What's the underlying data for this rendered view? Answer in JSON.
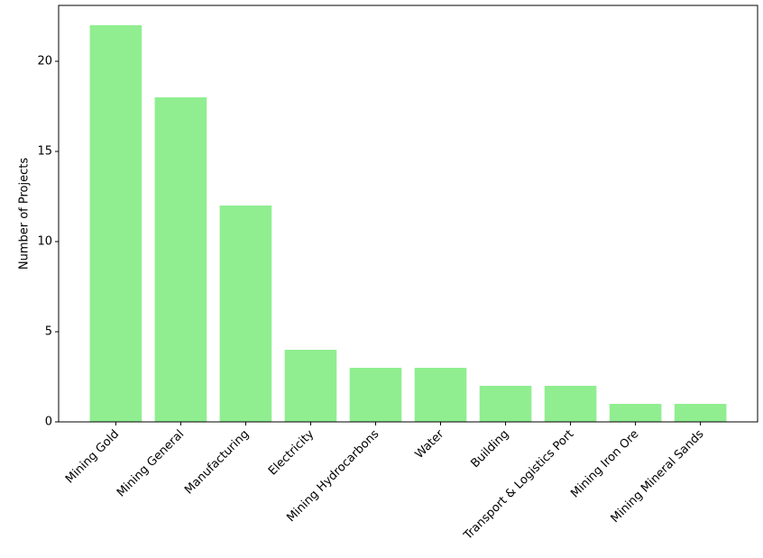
{
  "chart_data": {
    "type": "bar",
    "y_label": "Number of Projects",
    "categories": [
      "Mining Gold",
      "Mining General",
      "Manufacturing",
      "Electricity",
      "Mining Hydrocarbons",
      "Water",
      "Building",
      "Transport & Logistics Port",
      "Mining Iron Ore",
      "Mining Mineral Sands"
    ],
    "values": [
      22,
      18,
      12,
      4,
      3,
      3,
      2,
      2,
      1,
      1
    ],
    "color": "#90ee90",
    "ylim": [
      0,
      23.1
    ],
    "yticks": [
      0,
      5,
      10,
      15,
      20
    ],
    "grid": false
  }
}
